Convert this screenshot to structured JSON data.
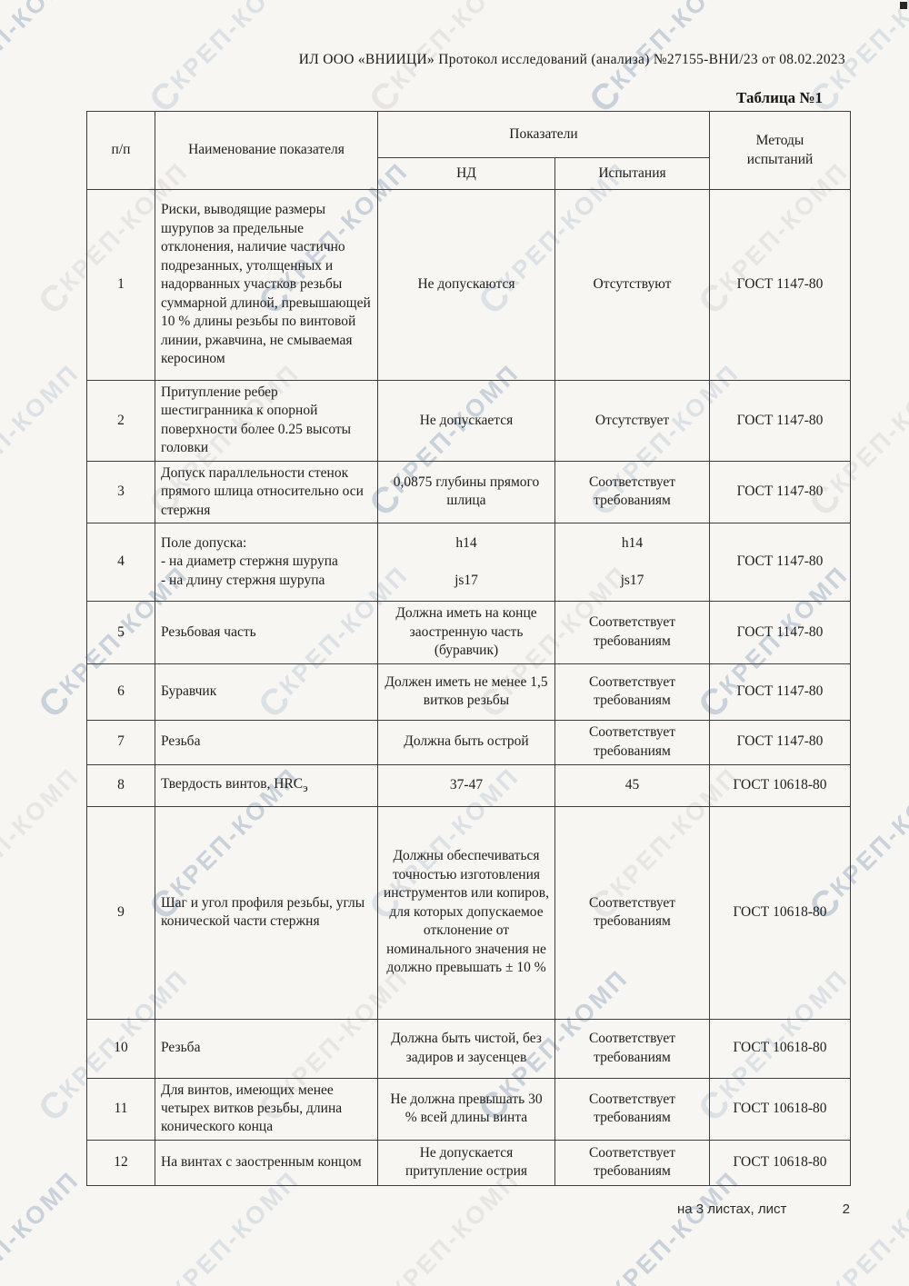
{
  "page": {
    "header_line": "ИЛ ООО «ВНИИЦИ»  Протокол исследований (анализа)  №27155-ВНИ/23 от  08.02.2023",
    "table_caption": "Таблица №1",
    "footer_left": "на 3  листах, лист",
    "footer_page": "2"
  },
  "watermark": {
    "text": "КРЕП-КОМП",
    "logo": "Ϲ"
  },
  "table": {
    "headers": {
      "num": "п/п",
      "name": "Наименование показателя",
      "group": "Показатели",
      "nd": "НД",
      "test": "Испытания",
      "methods": "Методы\nиспытаний"
    },
    "rows": [
      {
        "num": "1",
        "name": "Риски, выводящие размеры шурупов за предельные отклонения, наличие частично подрезанных, утолщенных и надорванных участков резьбы суммарной длиной, превышающей 10 % длины резьбы по винтовой линии, ржавчина, не смываемая керосином",
        "nd": "Не допускаются",
        "test": "Отсутствуют",
        "method": "ГОСТ 1147-80"
      },
      {
        "num": "2",
        "name": "Притупление ребер шестигранника к опорной поверхности более 0.25 высоты головки",
        "nd": "Не допускается",
        "test": "Отсутствует",
        "method": "ГОСТ 1147-80"
      },
      {
        "num": "3",
        "name": "Допуск параллельности стенок прямого шлица относительно оси стержня",
        "nd": "0,0875 глубины прямого шлица",
        "test": "Соответствует требованиям",
        "method": "ГОСТ 1147-80"
      },
      {
        "num": "4",
        "name": "Поле допуска:\n- на диаметр стержня шурупа\n- на длину стержня шурупа",
        "nd": "h14\n\njs17",
        "test": "h14\n\njs17",
        "method": "ГОСТ 1147-80"
      },
      {
        "num": "5",
        "name": "Резьбовая часть",
        "nd": "Должна иметь на конце заостренную часть (буравчик)",
        "test": "Соответствует требованиям",
        "method": "ГОСТ 1147-80"
      },
      {
        "num": "6",
        "name": "Буравчик",
        "nd": "Должен иметь не менее 1,5 витков резьбы",
        "test": "Соответствует требованиям",
        "method": "ГОСТ 1147-80"
      },
      {
        "num": "7",
        "name": "Резьба",
        "nd": "Должна быть острой",
        "test": "Соответствует требованиям",
        "method": "ГОСТ 1147-80"
      },
      {
        "num": "8",
        "name": "Твердость винтов, HRC",
        "name_sub": "э",
        "nd": "37-47",
        "test": "45",
        "method": "ГОСТ 10618-80"
      },
      {
        "num": "9",
        "name": "Шаг и угол профиля резьбы, углы конической части стержня",
        "nd": "Должны обеспечиваться точностью изготовления инструментов или копиров, для которых допускаемое отклонение от номинального значения не должно превышать ± 10 %",
        "test": "Соответствует требованиям",
        "method": "ГОСТ 10618-80"
      },
      {
        "num": "10",
        "name": "Резьба",
        "nd": "Должна быть чистой, без задиров и заусенцев",
        "test": "Соответствует требованиям",
        "method": "ГОСТ 10618-80"
      },
      {
        "num": "11",
        "name": "Для винтов, имеющих менее четырех витков резьбы, длина конического конца",
        "nd": "Не должна превышать 30 % всей длины винта",
        "test": "Соответствует требованиям",
        "method": "ГОСТ 10618-80"
      },
      {
        "num": "12",
        "name": "На винтах с заостренным концом",
        "nd": "Не допускается притупление острия",
        "test": "Соответствует требованиям",
        "method": "ГОСТ 10618-80"
      }
    ]
  }
}
